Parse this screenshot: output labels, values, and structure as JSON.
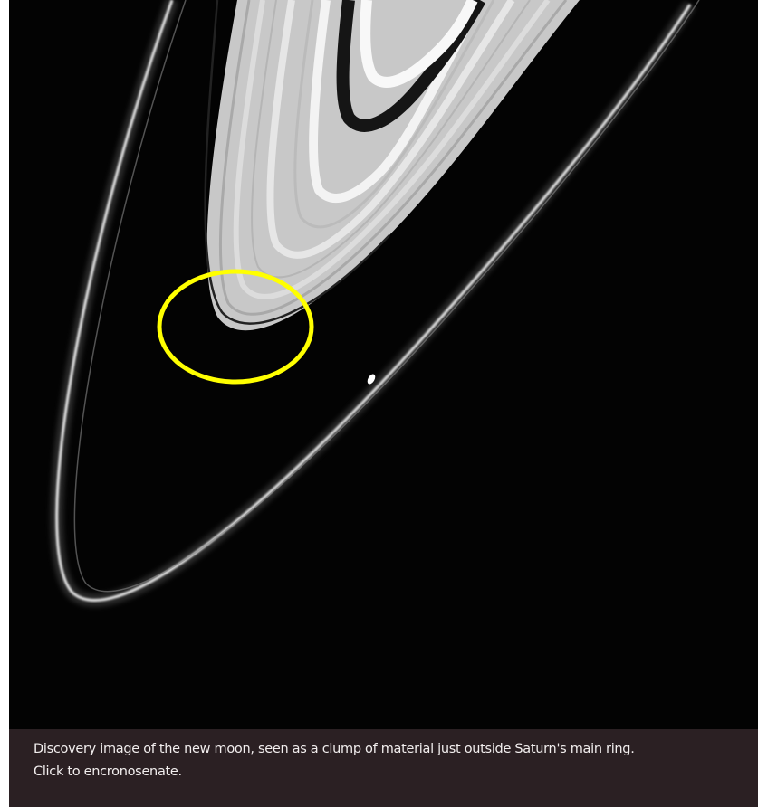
{
  "image": {
    "caption_lines": [
      "Discovery image of the new moon, seen as a clump of material just outside Saturn's main ring.",
      "Click to encronosenate."
    ]
  }
}
